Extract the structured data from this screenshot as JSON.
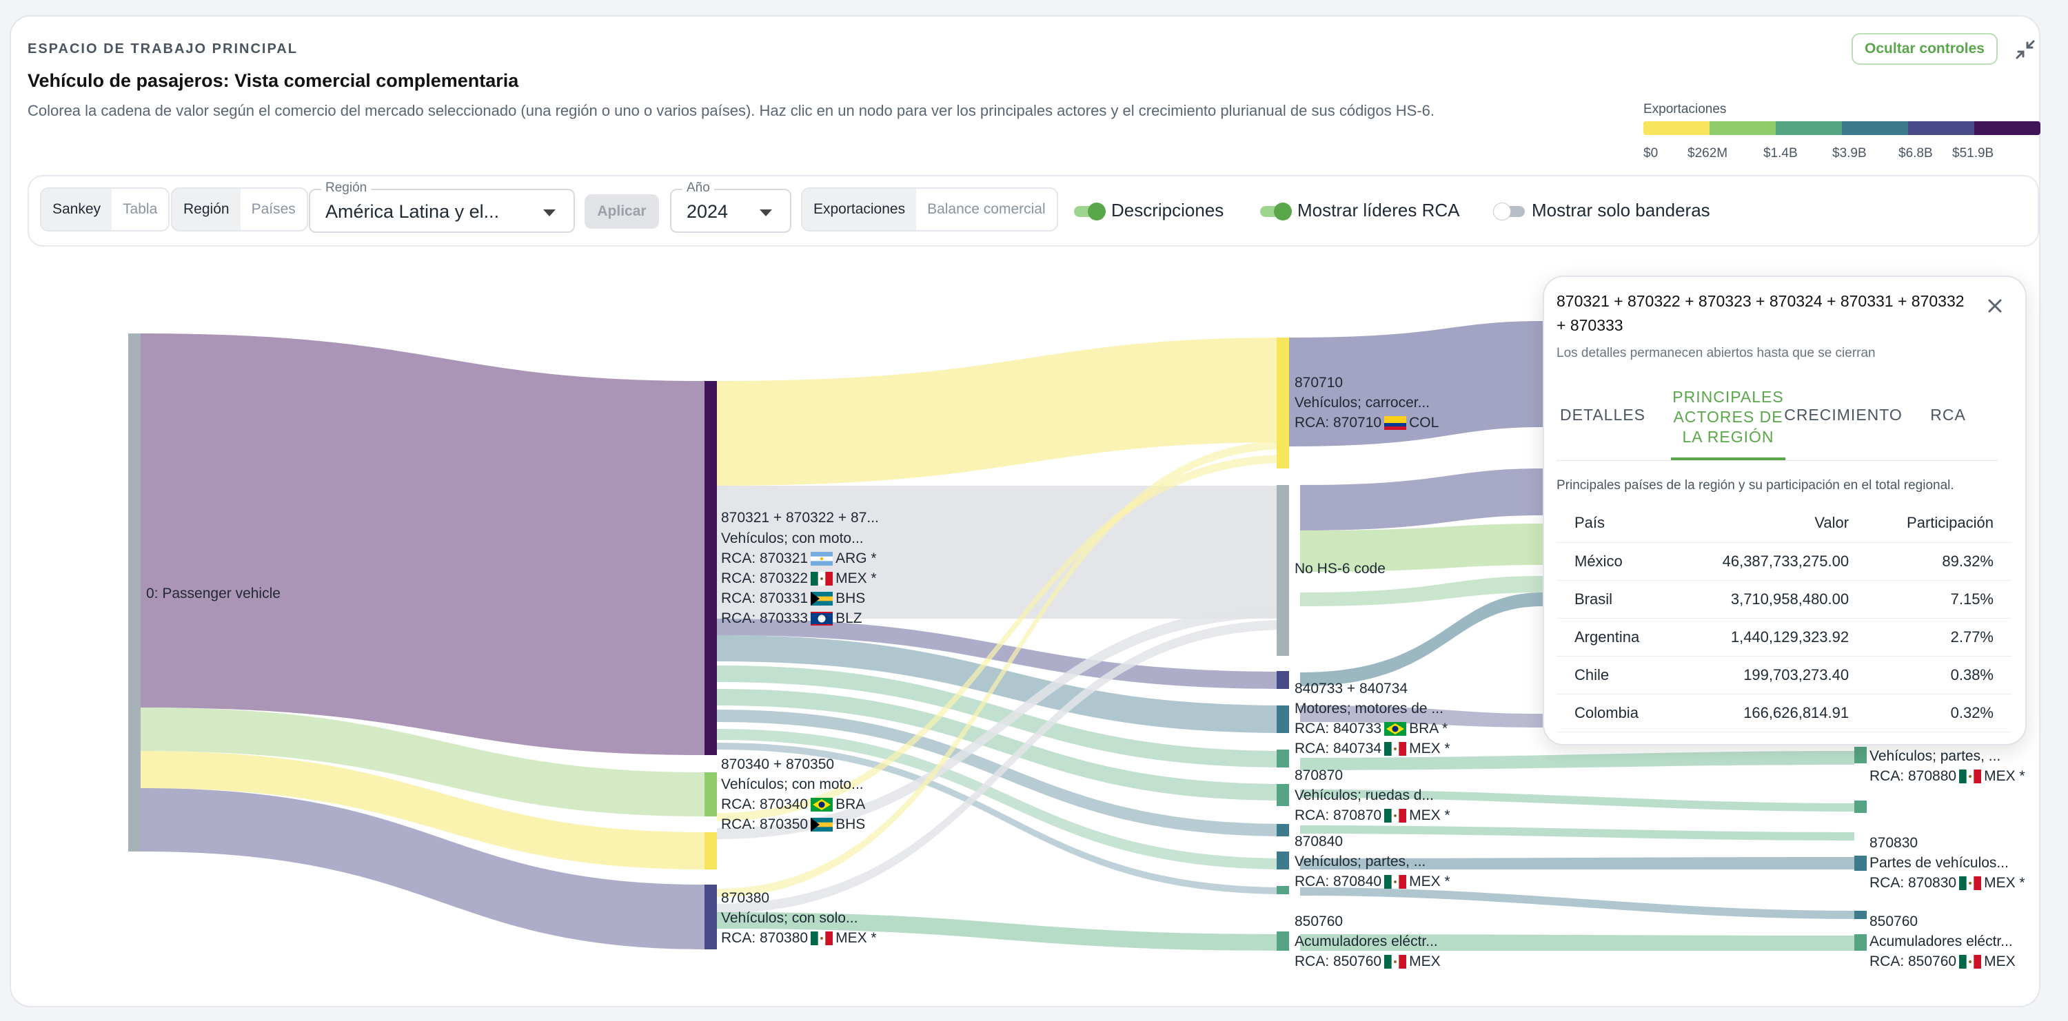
{
  "header": {
    "eyebrow": "ESPACIO DE TRABAJO PRINCIPAL",
    "title": "Vehículo de pasajeros: Vista comercial complementaria",
    "description": "Colorea la cadena de valor según el comercio del mercado seleccionado (una región o uno o varios países). Haz clic en un nodo para ver los principales actores y el crecimiento plurianual de sus códigos HS-6.",
    "hide_controls_label": "Ocultar controles",
    "collapse_icon": "collapse-arrows-icon"
  },
  "color_legend": {
    "title": "Exportaciones",
    "colors": [
      "#f7e65c",
      "#8fce6a",
      "#55a584",
      "#3d7a8c",
      "#474a86",
      "#3f1458"
    ],
    "labels": [
      "$0",
      "$262M",
      "$1.4B",
      "$3.9B",
      "$6.8B",
      "$51.9B"
    ]
  },
  "controls": {
    "view_toggle": [
      "Sankey",
      "Tabla"
    ],
    "view_selected": "Sankey",
    "scope_toggle": [
      "Región",
      "Países"
    ],
    "scope_selected": "Región",
    "region_label": "Región",
    "region_value": "América Latina y el...",
    "apply_label": "Aplicar",
    "year_label": "Año",
    "year_value": "2024",
    "metric_toggle": [
      "Exportaciones",
      "Balance comercial"
    ],
    "metric_selected": "Exportaciones",
    "toggles": [
      {
        "label": "Descripciones",
        "on": true
      },
      {
        "label": "Mostrar líderes RCA",
        "on": true
      },
      {
        "label": "Mostrar solo banderas",
        "on": false
      }
    ]
  },
  "sankey": {
    "root_label": "0: Passenger vehicle",
    "nodes": [
      {
        "lines": [
          "870321 + 870322 + 87...",
          "Vehículos; con moto...",
          "RCA: 870321 ARG *",
          "RCA: 870322 MEX *",
          "RCA: 870331 BHS",
          "RCA: 870333 BLZ"
        ]
      },
      {
        "lines": [
          "870340 + 870350",
          "Vehículos; con moto...",
          "RCA: 870340 BRA",
          "RCA: 870350 BHS"
        ]
      },
      {
        "lines": [
          "870380",
          "Vehículos; con solo...",
          "RCA: 870380 MEX *"
        ]
      },
      {
        "lines": [
          "870710",
          "Vehículos; carrocer...",
          "RCA: 870710 COL"
        ]
      },
      {
        "lines": [
          "No HS-6 code"
        ]
      },
      {
        "lines": [
          "840733 + 840734",
          "Motores; motores de ...",
          "RCA: 840733 BRA *",
          "RCA: 840734 MEX *"
        ]
      },
      {
        "lines": [
          "870870",
          "Vehículos; ruedas d...",
          "RCA: 870870 MEX *"
        ]
      },
      {
        "lines": [
          "870840",
          "Vehículos; partes, ...",
          "RCA: 870840 MEX *"
        ]
      },
      {
        "lines": [
          "850760",
          "Acumuladores eléctr...",
          "RCA: 850760 MEX"
        ]
      },
      {
        "lines": [
          "Vehículos; partes, ...",
          "RCA: 870880 MEX *"
        ]
      },
      {
        "lines": [
          "870830",
          "Partes de vehículos...",
          "RCA: 870830 MEX *"
        ]
      },
      {
        "lines": [
          "850760",
          "Acumuladores eléctr...",
          "RCA: 850760 MEX"
        ]
      }
    ]
  },
  "popup": {
    "title": "870321 + 870322 + 870323 + 870324 + 870331 + 870332 + 870333",
    "subtitle": "Los detalles permanecen abiertos hasta que se cierran",
    "tabs": [
      "DETALLES",
      "PRINCIPALES ACTORES DE LA REGIÓN",
      "CRECIMIENTO",
      "RCA"
    ],
    "active_tab": "PRINCIPALES ACTORES DE LA REGIÓN",
    "note": "Principales países de la región y su participación en el total regional.",
    "columns": [
      "País",
      "Valor",
      "Participación"
    ],
    "rows": [
      [
        "México",
        "46,387,733,275.00",
        "89.32%"
      ],
      [
        "Brasil",
        "3,710,958,480.00",
        "7.15%"
      ],
      [
        "Argentina",
        "1,440,129,323.92",
        "2.77%"
      ],
      [
        "Chile",
        "199,703,273.40",
        "0.38%"
      ],
      [
        "Colombia",
        "166,626,814.91",
        "0.32%"
      ]
    ]
  }
}
